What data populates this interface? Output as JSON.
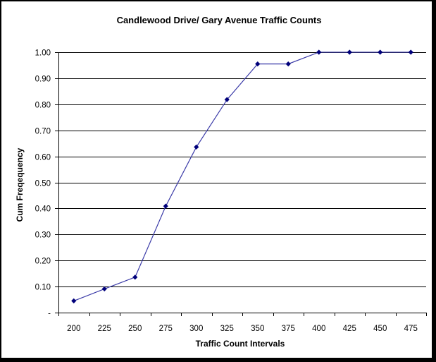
{
  "chart_data": {
    "type": "line",
    "title": "Candlewood Drive/ Gary Avenue Traffic Counts",
    "xlabel": "Traffic Count Intervals",
    "ylabel": "Cum Freqequency",
    "categories": [
      "200",
      "225",
      "250",
      "275",
      "300",
      "325",
      "350",
      "375",
      "400",
      "425",
      "450",
      "475"
    ],
    "series": [
      {
        "values": [
          0.045,
          0.091,
          0.136,
          0.409,
          0.636,
          0.818,
          0.955,
          0.955,
          1.0,
          1.0,
          1.0,
          1.0
        ]
      }
    ],
    "y_ticks": [
      {
        "value": 0,
        "label": "-"
      },
      {
        "value": 0.1,
        "label": "0.10"
      },
      {
        "value": 0.2,
        "label": "0.20"
      },
      {
        "value": 0.3,
        "label": "0.30"
      },
      {
        "value": 0.4,
        "label": "0.40"
      },
      {
        "value": 0.5,
        "label": "0.50"
      },
      {
        "value": 0.6,
        "label": "0.60"
      },
      {
        "value": 0.7,
        "label": "0.70"
      },
      {
        "value": 0.8,
        "label": "0.80"
      },
      {
        "value": 0.9,
        "label": "0.90"
      },
      {
        "value": 1.0,
        "label": "1.00"
      }
    ],
    "ylim": [
      0,
      1.0
    ],
    "grid": true,
    "legend": false,
    "colors": {
      "line": "#3b3ba8",
      "marker": "#00007a",
      "grid": "#000000",
      "frame_border": "#000000",
      "background": "#ffffff"
    }
  }
}
